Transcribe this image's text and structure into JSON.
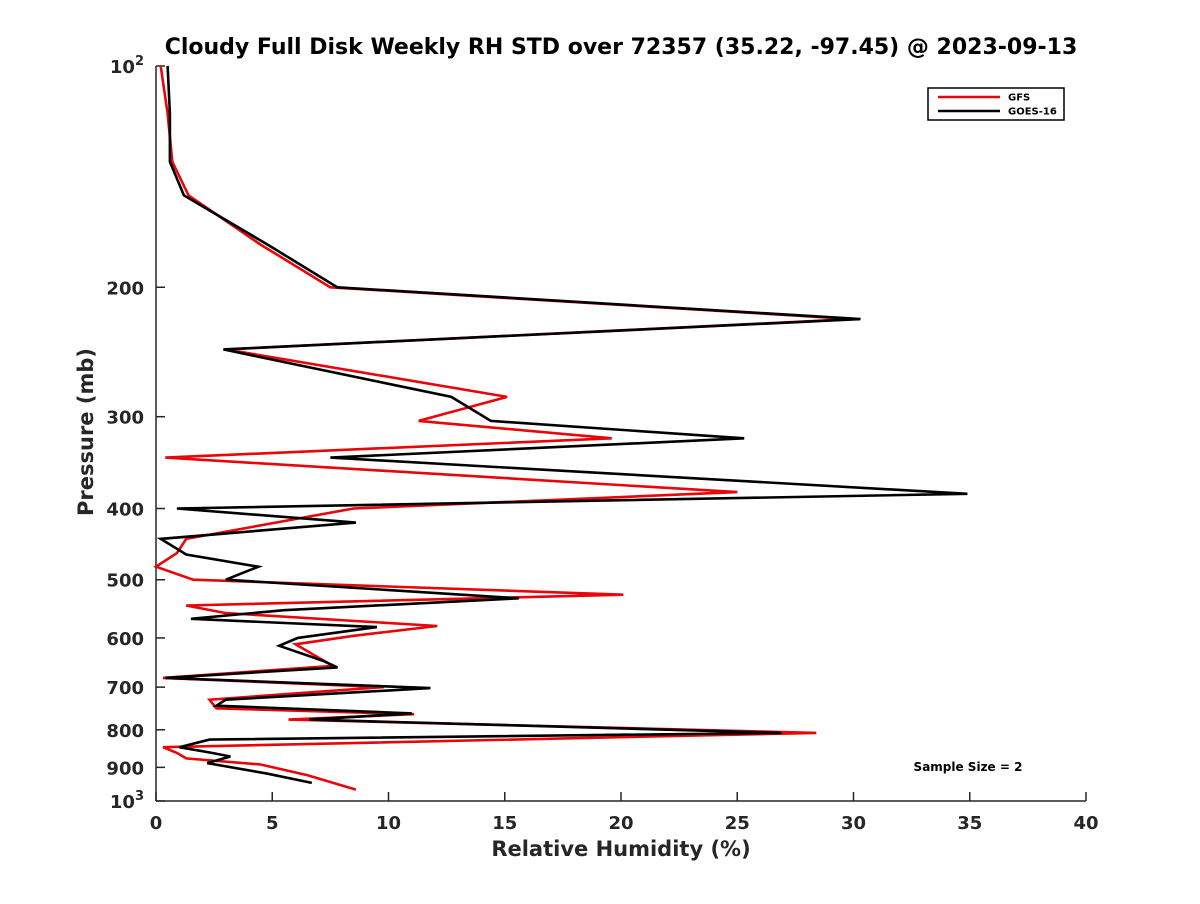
{
  "chart_data": {
    "type": "line",
    "title": "Cloudy Full Disk Weekly RH STD over 72357 (35.22, -97.45) @ 2023-09-13",
    "xlabel": "Relative Humidity (%)",
    "ylabel": "Pressure (mb)",
    "xlim": [
      0,
      40
    ],
    "ylim": [
      100,
      1000
    ],
    "y_scale": "log",
    "y_reversed": true,
    "x_ticks": [
      "0",
      "5",
      "10",
      "15",
      "20",
      "25",
      "30",
      "35",
      "40"
    ],
    "y_ticks": [
      {
        "value": 100,
        "label": "10",
        "sup": "2"
      },
      {
        "value": 200,
        "label": "200",
        "sup": ""
      },
      {
        "value": 300,
        "label": "300",
        "sup": ""
      },
      {
        "value": 400,
        "label": "400",
        "sup": ""
      },
      {
        "value": 500,
        "label": "500",
        "sup": ""
      },
      {
        "value": 600,
        "label": "600",
        "sup": ""
      },
      {
        "value": 700,
        "label": "700",
        "sup": ""
      },
      {
        "value": 800,
        "label": "800",
        "sup": ""
      },
      {
        "value": 900,
        "label": "900",
        "sup": ""
      },
      {
        "value": 1000,
        "label": "10",
        "sup": "3"
      }
    ],
    "grid": false,
    "legend_position": "top-right",
    "annotation": "Sample Size = 2",
    "series": [
      {
        "name": "GFS",
        "color": "#e8060a",
        "points": [
          [
            0.2,
            100
          ],
          [
            0.5,
            116
          ],
          [
            0.7,
            135
          ],
          [
            1.4,
            150
          ],
          [
            4.5,
            175
          ],
          [
            7.5,
            200
          ],
          [
            30.0,
            221
          ],
          [
            3.0,
            243
          ],
          [
            15.1,
            282
          ],
          [
            11.3,
            304
          ],
          [
            19.6,
            321
          ],
          [
            0.4,
            341
          ],
          [
            25.0,
            380
          ],
          [
            8.5,
            400
          ],
          [
            1.3,
            440
          ],
          [
            0.9,
            460
          ],
          [
            0.0,
            480
          ],
          [
            1.6,
            500
          ],
          [
            20.1,
            524
          ],
          [
            1.3,
            542
          ],
          [
            3.0,
            555
          ],
          [
            12.1,
            578
          ],
          [
            8.5,
            596
          ],
          [
            6.0,
            612
          ],
          [
            7.6,
            655
          ],
          [
            0.3,
            680
          ],
          [
            9.8,
            700
          ],
          [
            2.3,
            728
          ],
          [
            2.6,
            748
          ],
          [
            11.1,
            762
          ],
          [
            5.7,
            775
          ],
          [
            28.4,
            808
          ],
          [
            0.3,
            845
          ],
          [
            0.9,
            860
          ],
          [
            1.3,
            875
          ],
          [
            4.5,
            892
          ],
          [
            6.5,
            922
          ],
          [
            8.6,
            965
          ]
        ]
      },
      {
        "name": "GOES-16",
        "color": "#000000",
        "points": [
          [
            0.5,
            100
          ],
          [
            0.6,
            116
          ],
          [
            0.6,
            135
          ],
          [
            1.2,
            150
          ],
          [
            4.8,
            175
          ],
          [
            7.8,
            200
          ],
          [
            30.3,
            221
          ],
          [
            2.9,
            243
          ],
          [
            12.7,
            282
          ],
          [
            14.4,
            304
          ],
          [
            25.3,
            321
          ],
          [
            7.5,
            341
          ],
          [
            34.9,
            382
          ],
          [
            0.9,
            400
          ],
          [
            8.6,
            418
          ],
          [
            0.2,
            440
          ],
          [
            1.3,
            462
          ],
          [
            4.4,
            480
          ],
          [
            3.0,
            500
          ],
          [
            15.6,
            530
          ],
          [
            5.5,
            550
          ],
          [
            1.5,
            565
          ],
          [
            9.5,
            580
          ],
          [
            6.1,
            600
          ],
          [
            5.3,
            615
          ],
          [
            7.2,
            645
          ],
          [
            7.8,
            658
          ],
          [
            0.4,
            680
          ],
          [
            11.8,
            702
          ],
          [
            3.0,
            728
          ],
          [
            2.6,
            742
          ],
          [
            11.0,
            760
          ],
          [
            6.6,
            775
          ],
          [
            26.9,
            808
          ],
          [
            2.3,
            825
          ],
          [
            1.0,
            845
          ],
          [
            2.4,
            860
          ],
          [
            3.2,
            870
          ],
          [
            2.2,
            888
          ],
          [
            4.8,
            918
          ],
          [
            6.7,
            945
          ]
        ]
      }
    ]
  }
}
